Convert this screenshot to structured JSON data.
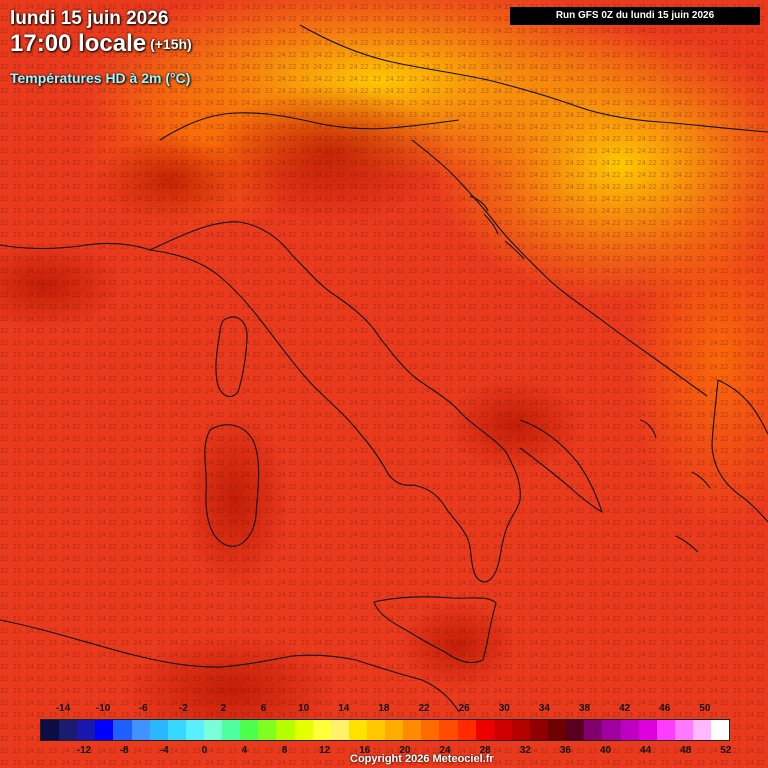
{
  "header": {
    "date_line": "lundi 15 juin 2026",
    "time_line": "17:00 locale",
    "offset": "(+15h)",
    "subtitle": "Températures HD à 2m (°C)",
    "run_label": "Run GFS 0Z du lundi 15 juin 2026"
  },
  "legend": {
    "top_labels": [
      "-14",
      "-10",
      "-6",
      "-2",
      "2",
      "6",
      "10",
      "14",
      "18",
      "22",
      "26",
      "30",
      "34",
      "38",
      "42",
      "46",
      "50"
    ],
    "bottom_labels": [
      "-12",
      "-8",
      "-4",
      "0",
      "4",
      "8",
      "12",
      "16",
      "20",
      "24",
      "28",
      "32",
      "36",
      "40",
      "44",
      "48",
      "52"
    ],
    "colors": [
      "#0d0d45",
      "#1b1b70",
      "#1818b0",
      "#0000ff",
      "#1f5fff",
      "#3f92ff",
      "#29b8ff",
      "#36d8ff",
      "#58f0ff",
      "#78ffd8",
      "#4dff9e",
      "#4cff4c",
      "#7dff1f",
      "#b5ff00",
      "#e3ff00",
      "#ffff3a",
      "#fff26a",
      "#ffe200",
      "#ffc800",
      "#ffac00",
      "#ff8a00",
      "#ff6a00",
      "#ff4b00",
      "#ff2a00",
      "#ef0000",
      "#d00000",
      "#b30000",
      "#900000",
      "#6f0000",
      "#590020",
      "#800070",
      "#a000a0",
      "#c000c0",
      "#de00de",
      "#ff3cff",
      "#ff7aff",
      "#ffb8ff",
      "#ffffff"
    ]
  },
  "copyright": "Copyright 2026 Meteociel.fr"
}
